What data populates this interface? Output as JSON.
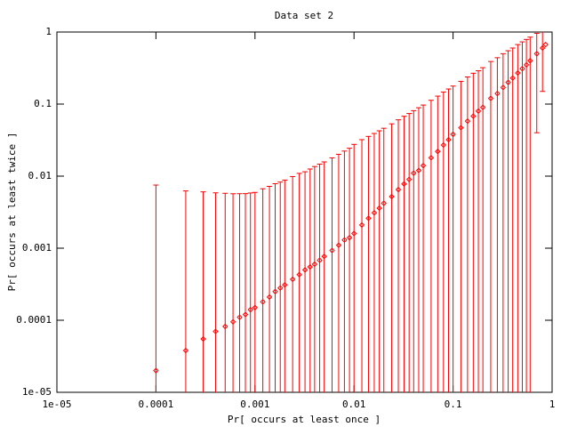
{
  "chart_data": {
    "type": "errorbar-scatter",
    "title": "Data set 2",
    "x_label": "Pr[ occurs at least once ]",
    "y_label": "Pr[ occurs at least twice ]",
    "xscale": "log",
    "yscale": "log",
    "color": "#ff0000",
    "xlim": [
      1e-05,
      1
    ],
    "ylim": [
      1e-05,
      1
    ],
    "xticks": [
      {
        "value": 1e-05,
        "label": "1e-05"
      },
      0.0001,
      0.001,
      0.01,
      0.1,
      1
    ],
    "yticks": [
      {
        "value": 1e-05,
        "label": "1e-05"
      },
      0.0001,
      0.001,
      0.01,
      0.1,
      1
    ],
    "x": [
      0.0001,
      0.0002,
      0.0003,
      0.0004,
      0.0005,
      0.0006,
      0.0007,
      0.0008,
      0.0009,
      0.001,
      0.0012,
      0.0014,
      0.0016,
      0.0018,
      0.002,
      0.0024,
      0.0028,
      0.0032,
      0.0036,
      0.004,
      0.0045,
      0.005,
      0.006,
      0.007,
      0.008,
      0.009,
      0.01,
      0.012,
      0.014,
      0.016,
      0.018,
      0.02,
      0.024,
      0.028,
      0.032,
      0.036,
      0.04,
      0.045,
      0.05,
      0.06,
      0.07,
      0.08,
      0.09,
      0.1,
      0.12,
      0.14,
      0.16,
      0.18,
      0.2,
      0.24,
      0.28,
      0.32,
      0.36,
      0.4,
      0.45,
      0.5,
      0.55,
      0.6,
      0.7,
      0.8,
      0.86
    ],
    "values": [
      2e-05,
      3.8e-05,
      5.5e-05,
      7e-05,
      8.2e-05,
      9.5e-05,
      0.00011,
      0.00012,
      0.00014,
      0.00015,
      0.00018,
      0.00021,
      0.00025,
      0.00028,
      0.00031,
      0.00037,
      0.00043,
      0.0005,
      0.00055,
      0.0006,
      0.00068,
      0.00077,
      0.00093,
      0.0011,
      0.0013,
      0.0014,
      0.0016,
      0.0021,
      0.0026,
      0.0031,
      0.0036,
      0.0042,
      0.0052,
      0.0065,
      0.0078,
      0.009,
      0.011,
      0.012,
      0.014,
      0.018,
      0.022,
      0.027,
      0.032,
      0.038,
      0.047,
      0.058,
      0.068,
      0.08,
      0.09,
      0.12,
      0.14,
      0.17,
      0.2,
      0.23,
      0.27,
      0.31,
      0.35,
      0.4,
      0.5,
      0.6,
      0.67
    ],
    "errors": [
      0.0075,
      0.0062,
      0.006,
      0.0058,
      0.0057,
      0.0056,
      0.0056,
      0.0056,
      0.0057,
      0.0058,
      0.0065,
      0.007,
      0.0076,
      0.008,
      0.0085,
      0.0095,
      0.0105,
      0.011,
      0.012,
      0.013,
      0.014,
      0.015,
      0.017,
      0.019,
      0.021,
      0.023,
      0.026,
      0.03,
      0.033,
      0.036,
      0.039,
      0.042,
      0.048,
      0.054,
      0.06,
      0.065,
      0.07,
      0.077,
      0.083,
      0.095,
      0.107,
      0.12,
      0.13,
      0.14,
      0.16,
      0.18,
      0.2,
      0.21,
      0.23,
      0.27,
      0.3,
      0.33,
      0.35,
      0.37,
      0.4,
      0.42,
      0.44,
      0.45,
      0.46,
      0.45,
      0
    ]
  }
}
